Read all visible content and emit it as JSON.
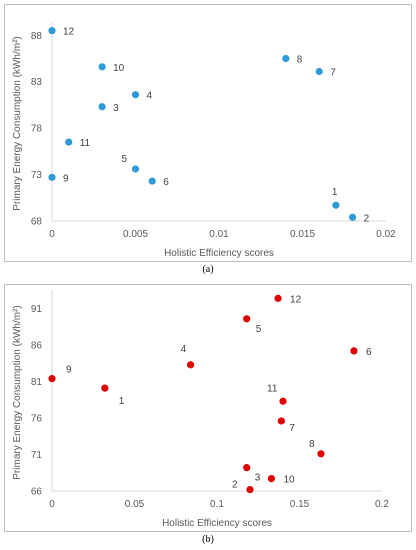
{
  "chart_data": [
    {
      "type": "scatter",
      "caption": "(a)",
      "xlabel": "Holistic Efficiency scores",
      "ylabel": "Primary Energy Consumption (kWh/m²)",
      "xlim": [
        0,
        0.02
      ],
      "ylim": [
        68,
        89
      ],
      "xticks": [
        0,
        0.005,
        0.01,
        0.015,
        0.02
      ],
      "xtick_labels": [
        "0",
        "0.005",
        "0.01",
        "0.015",
        "0.02"
      ],
      "yticks": [
        68,
        73,
        78,
        83,
        88
      ],
      "ytick_labels": [
        "68",
        "73",
        "78",
        "83",
        "88"
      ],
      "color": "#2e9bd6",
      "grid": false,
      "points": [
        {
          "label": "12",
          "x": 0,
          "y": 88.5
        },
        {
          "label": "10",
          "x": 0.003,
          "y": 84.6
        },
        {
          "label": "4",
          "x": 0.005,
          "y": 81.6
        },
        {
          "label": "3",
          "x": 0.003,
          "y": 80.3
        },
        {
          "label": "11",
          "x": 0.001,
          "y": 76.5
        },
        {
          "label": "5",
          "x": 0.005,
          "y": 73.6
        },
        {
          "label": "9",
          "x": 0,
          "y": 72.7
        },
        {
          "label": "6",
          "x": 0.006,
          "y": 72.3
        },
        {
          "label": "8",
          "x": 0.014,
          "y": 85.5
        },
        {
          "label": "7",
          "x": 0.016,
          "y": 84.1
        },
        {
          "label": "1",
          "x": 0.017,
          "y": 69.7
        },
        {
          "label": "2",
          "x": 0.018,
          "y": 68.4
        }
      ]
    },
    {
      "type": "scatter",
      "caption": "(b)",
      "xlabel": "Holistic Efficiency scores",
      "ylabel": "Primary Energy Consumption (kWh/m²)",
      "xlim": [
        0,
        0.2
      ],
      "ylim": [
        66,
        93
      ],
      "xticks": [
        0,
        0.05,
        0.1,
        0.15,
        0.2
      ],
      "xtick_labels": [
        "0",
        "0.05",
        "0.1",
        "0.15",
        "0.2"
      ],
      "yticks": [
        66,
        71,
        76,
        81,
        86,
        91
      ],
      "ytick_labels": [
        "66",
        "71",
        "76",
        "81",
        "86",
        "91"
      ],
      "color": "#e00000",
      "grid": false,
      "points": [
        {
          "label": "12",
          "x": 0.137,
          "y": 92.4
        },
        {
          "label": "5",
          "x": 0.118,
          "y": 89.6
        },
        {
          "label": "6",
          "x": 0.183,
          "y": 85.2
        },
        {
          "label": "4",
          "x": 0.084,
          "y": 83.3
        },
        {
          "label": "9",
          "x": 0,
          "y": 81.4
        },
        {
          "label": "1",
          "x": 0.032,
          "y": 80.1
        },
        {
          "label": "11",
          "x": 0.14,
          "y": 78.3
        },
        {
          "label": "7",
          "x": 0.139,
          "y": 75.6
        },
        {
          "label": "8",
          "x": 0.163,
          "y": 71.1
        },
        {
          "label": "3",
          "x": 0.118,
          "y": 69.2
        },
        {
          "label": "10",
          "x": 0.133,
          "y": 67.7
        },
        {
          "label": "2",
          "x": 0.12,
          "y": 66.2
        }
      ]
    }
  ]
}
